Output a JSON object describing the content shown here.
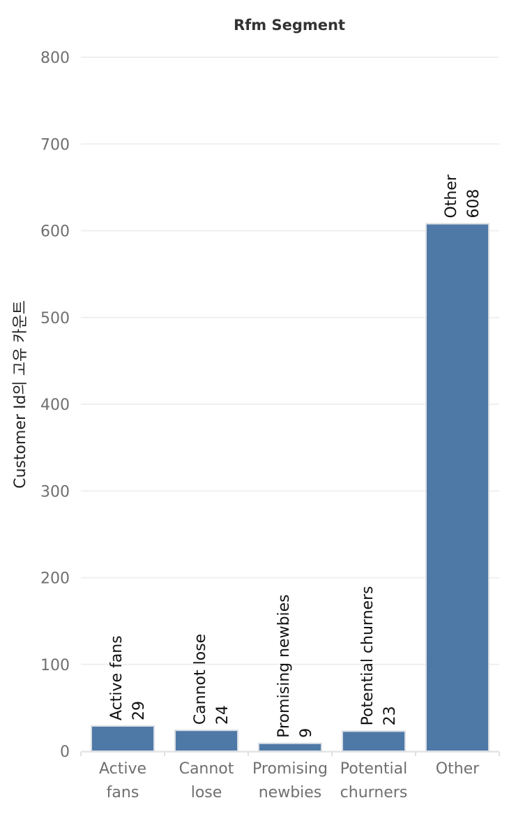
{
  "chart_data": {
    "type": "bar",
    "title": "Rfm Segment",
    "xlabel": "",
    "ylabel": "Customer Id의 고유 카운트",
    "ylim": [
      0,
      800
    ],
    "yticks": [
      0,
      100,
      200,
      300,
      400,
      500,
      600,
      700,
      800
    ],
    "grid": true,
    "categories": [
      "Active fans",
      "Cannot lose",
      "Promising newbies",
      "Potential churners",
      "Other"
    ],
    "category_tick_lines": [
      [
        "Active",
        "fans"
      ],
      [
        "Cannot",
        "lose"
      ],
      [
        "Promising",
        "newbies"
      ],
      [
        "Potential",
        "churners"
      ],
      [
        "Other"
      ]
    ],
    "values": [
      29,
      24,
      9,
      23,
      608
    ],
    "data_labels": [
      {
        "name": "Active fans",
        "value": "29"
      },
      {
        "name": "Cannot lose",
        "value": "24"
      },
      {
        "name": "Promising newbies",
        "value": "9"
      },
      {
        "name": "Potential churners",
        "value": "23"
      },
      {
        "name": "Other",
        "value": "608"
      }
    ],
    "colors": {
      "bar": "#4e79a7",
      "bar_outline": "#d9dde3",
      "grid": "#efefef",
      "tick_text": "#6f6f6f",
      "label_text": "#111111",
      "title_text": "#333333"
    }
  }
}
